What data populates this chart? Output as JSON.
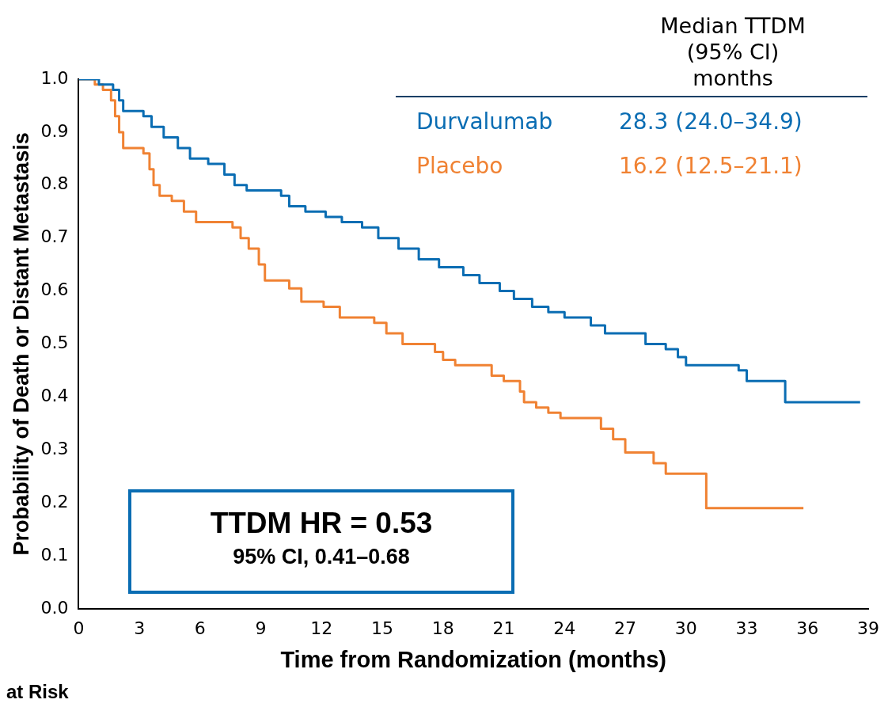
{
  "chart_data": {
    "type": "step",
    "xlabel": "Time from Randomization (months)",
    "ylabel": "Probability of Death or Distant Metastasis",
    "legend_title": "Median TTDM\n(95% CI)\nmonths",
    "legend": "top right",
    "xlim": [
      0,
      39
    ],
    "xticks": [
      0,
      3,
      6,
      9,
      12,
      15,
      18,
      21,
      24,
      27,
      30,
      33,
      36,
      39
    ],
    "ylim": [
      0,
      1
    ],
    "yticks": [
      {
        "value": 0,
        "label": "0.0"
      },
      {
        "value": 0.1,
        "label": "0.1"
      },
      {
        "value": 0.2,
        "label": "0.2"
      },
      {
        "value": 0.3,
        "label": "0.3"
      },
      {
        "value": 0.4,
        "label": "0.4"
      },
      {
        "value": 0.5,
        "label": "0.5"
      },
      {
        "value": 0.6,
        "label": "0.6"
      },
      {
        "value": 0.7,
        "label": "0.7"
      },
      {
        "value": 0.8,
        "label": "0.8"
      },
      {
        "value": 0.9,
        "label": "0.9"
      },
      {
        "value": 1,
        "label": "1.0"
      }
    ],
    "series": [
      {
        "name": "Durvalumab",
        "color": "#0a6db3",
        "x": [
          0,
          1.0,
          1.7,
          2.0,
          2.2,
          3.2,
          3.6,
          4.2,
          4.9,
          5.5,
          6.4,
          7.2,
          7.7,
          8.3,
          10.0,
          10.4,
          11.2,
          12.2,
          13.0,
          14.0,
          14.8,
          15.8,
          16.8,
          17.8,
          19.0,
          19.8,
          20.8,
          21.5,
          22.4,
          23.2,
          24.0,
          25.3,
          26.0,
          28.0,
          29.0,
          29.6,
          30.0,
          32.6,
          33.0,
          34.9,
          38.6
        ],
        "values": [
          1.0,
          0.99,
          0.98,
          0.96,
          0.94,
          0.93,
          0.91,
          0.89,
          0.87,
          0.85,
          0.84,
          0.82,
          0.8,
          0.79,
          0.78,
          0.76,
          0.75,
          0.74,
          0.73,
          0.72,
          0.7,
          0.68,
          0.66,
          0.645,
          0.63,
          0.615,
          0.6,
          0.585,
          0.57,
          0.56,
          0.55,
          0.535,
          0.52,
          0.5,
          0.49,
          0.475,
          0.46,
          0.45,
          0.43,
          0.39,
          0.39
        ]
      },
      {
        "name": "Placebo",
        "color": "#f08233",
        "x": [
          0,
          0.8,
          1.2,
          1.6,
          1.8,
          2.0,
          2.2,
          3.2,
          3.5,
          3.7,
          4.0,
          4.6,
          5.2,
          5.8,
          7.6,
          8.0,
          8.4,
          8.9,
          9.2,
          10.4,
          11.0,
          12.1,
          12.9,
          14.6,
          15.2,
          16.0,
          17.6,
          18.0,
          18.6,
          20.4,
          21.0,
          21.8,
          22.0,
          22.6,
          23.2,
          23.8,
          25.8,
          26.4,
          27.0,
          28.4,
          29.0,
          31.0,
          35.8
        ],
        "values": [
          1.0,
          0.99,
          0.98,
          0.96,
          0.93,
          0.9,
          0.87,
          0.86,
          0.83,
          0.8,
          0.78,
          0.77,
          0.75,
          0.73,
          0.72,
          0.7,
          0.68,
          0.65,
          0.62,
          0.605,
          0.58,
          0.57,
          0.55,
          0.54,
          0.52,
          0.5,
          0.485,
          0.47,
          0.46,
          0.44,
          0.43,
          0.41,
          0.39,
          0.38,
          0.37,
          0.36,
          0.34,
          0.32,
          0.295,
          0.275,
          0.255,
          0.19,
          0.19
        ]
      }
    ],
    "annotations": [
      "28.3 (24.0–34.9)",
      "16.2 (12.5–21.1)",
      "TTDM HR = 0.53",
      "95% CI, 0.41–0.68",
      "at Risk"
    ]
  }
}
